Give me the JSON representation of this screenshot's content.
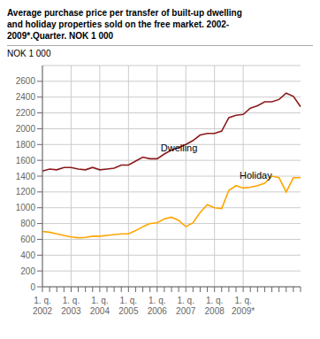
{
  "chart_data": {
    "type": "line",
    "title": "Average purchase price per transfer of built-up dwelling\nand holiday properties sold on the free market. 2002-\n2009*.Quarter. NOK 1 000",
    "ylabel": "NOK 1 000",
    "categories": [
      "1. q.\n2002",
      null,
      null,
      null,
      "1. q.\n2003",
      null,
      null,
      null,
      "1. q.\n2004",
      null,
      null,
      null,
      "1. q.\n2005",
      null,
      null,
      null,
      "1. q.\n2006",
      null,
      null,
      null,
      "1. q.\n2007",
      null,
      null,
      null,
      "1. q.\n2008",
      null,
      null,
      null,
      "1. q.\n2009*",
      null,
      null,
      null,
      null,
      null,
      null,
      null,
      null
    ],
    "series": [
      {
        "name": "Dwelling",
        "color": "#8B1A1A",
        "values": [
          1465,
          1490,
          1480,
          1510,
          1510,
          1490,
          1480,
          1510,
          1480,
          1490,
          1500,
          1540,
          1540,
          1590,
          1640,
          1620,
          1620,
          1680,
          1730,
          1760,
          1800,
          1850,
          1920,
          1940,
          1940,
          1970,
          2140,
          2170,
          2180,
          2260,
          2290,
          2340,
          2340,
          2370,
          2450,
          2410,
          2280
        ]
      },
      {
        "name": "Holiday",
        "color": "#FFA500",
        "values": [
          700,
          690,
          670,
          650,
          630,
          620,
          625,
          640,
          640,
          650,
          660,
          670,
          670,
          710,
          760,
          800,
          810,
          860,
          880,
          840,
          760,
          810,
          940,
          1040,
          1000,
          990,
          1220,
          1280,
          1250,
          1260,
          1280,
          1310,
          1400,
          1380,
          1200,
          1380,
          1380
        ]
      }
    ],
    "ylim": [
      0,
      2800
    ],
    "yticks": [
      0,
      200,
      400,
      600,
      800,
      1000,
      1200,
      1400,
      1600,
      1800,
      2000,
      2200,
      2400,
      2600
    ],
    "grid": true
  }
}
